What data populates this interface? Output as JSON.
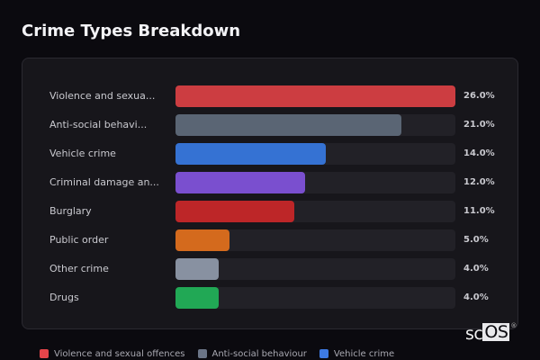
{
  "title": "Crime Types Breakdown",
  "chart_data": {
    "type": "bar",
    "orientation": "horizontal",
    "title": "Crime Types Breakdown",
    "categories": [
      "Violence and sexual offences",
      "Anti-social behaviour",
      "Vehicle crime",
      "Criminal damage and arson",
      "Burglary",
      "Public order",
      "Other crime",
      "Drugs"
    ],
    "display_labels": [
      "Violence and sexua...",
      "Anti-social behavi...",
      "Vehicle crime",
      "Criminal damage an...",
      "Burglary",
      "Public order",
      "Other crime",
      "Drugs"
    ],
    "values": [
      26.0,
      21.0,
      14.0,
      12.0,
      11.0,
      5.0,
      4.0,
      4.0
    ],
    "value_labels": [
      "26.0%",
      "21.0%",
      "14.0%",
      "12.0%",
      "11.0%",
      "5.0%",
      "4.0%",
      "4.0%"
    ],
    "colors": [
      "#cc3d41",
      "#5a6574",
      "#3572d3",
      "#7a4fcf",
      "#bd2628",
      "#d46a1d",
      "#8891a1",
      "#21a855"
    ],
    "unit": "%",
    "max": 26.0,
    "grid": false,
    "legend_position": "bottom"
  },
  "legend": [
    {
      "label": "Violence and sexual offences",
      "color": "#e5454a"
    },
    {
      "label": "Anti-social behaviour",
      "color": "#6b7587"
    },
    {
      "label": "Vehicle crime",
      "color": "#3d7ae3"
    }
  ],
  "logo": {
    "sc": "sc",
    "os": "OS",
    "reg": "®"
  }
}
